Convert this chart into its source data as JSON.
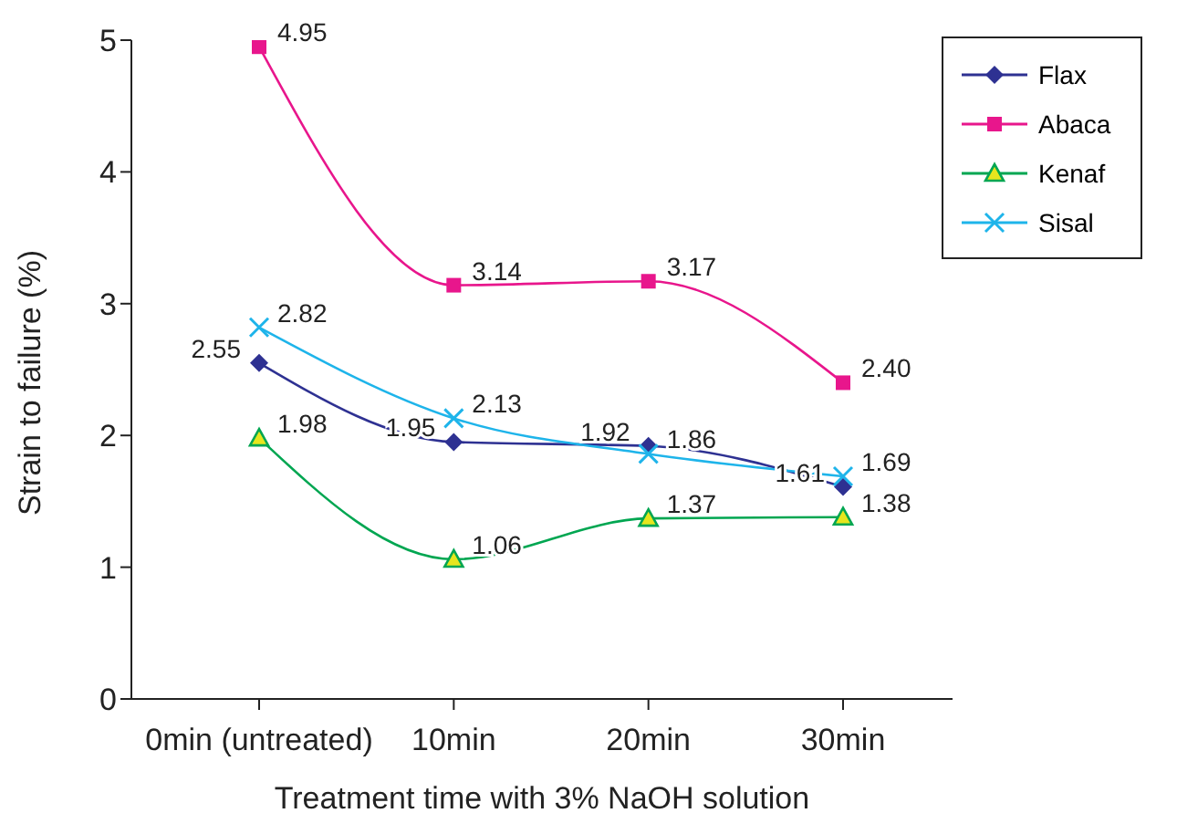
{
  "chart_data": {
    "type": "line",
    "xlabel": "Treatment time with 3% NaOH solution",
    "ylabel": "Strain to failure (%)",
    "categories": [
      "0min (untreated)",
      "10min",
      "20min",
      "30min"
    ],
    "series": [
      {
        "name": "Flax",
        "color": "#2e3192",
        "marker": "diamond",
        "values": [
          2.55,
          1.95,
          1.92,
          1.61
        ],
        "value_labels": [
          "2.55",
          "1.95",
          "1.92",
          "1.61"
        ]
      },
      {
        "name": "Abaca",
        "color": "#e8168c",
        "marker": "square",
        "values": [
          4.95,
          3.14,
          3.17,
          2.4
        ],
        "value_labels": [
          "4.95",
          "3.14",
          "3.17",
          "2.40"
        ]
      },
      {
        "name": "Kenaf",
        "color": "#00a651",
        "marker": "triangle",
        "values": [
          1.98,
          1.06,
          1.37,
          1.38
        ],
        "value_labels": [
          "1.98",
          "1.06",
          "1.37",
          "1.38"
        ]
      },
      {
        "name": "Sisal",
        "color": "#1eb4ea",
        "marker": "cross",
        "values": [
          2.82,
          2.13,
          1.86,
          1.69
        ],
        "value_labels": [
          "2.82",
          "2.13",
          "1.86",
          "1.69"
        ]
      }
    ],
    "ylim": [
      0,
      5
    ],
    "yticks": [
      0,
      1,
      2,
      3,
      4,
      5
    ],
    "grid": false,
    "legend": "top right"
  }
}
